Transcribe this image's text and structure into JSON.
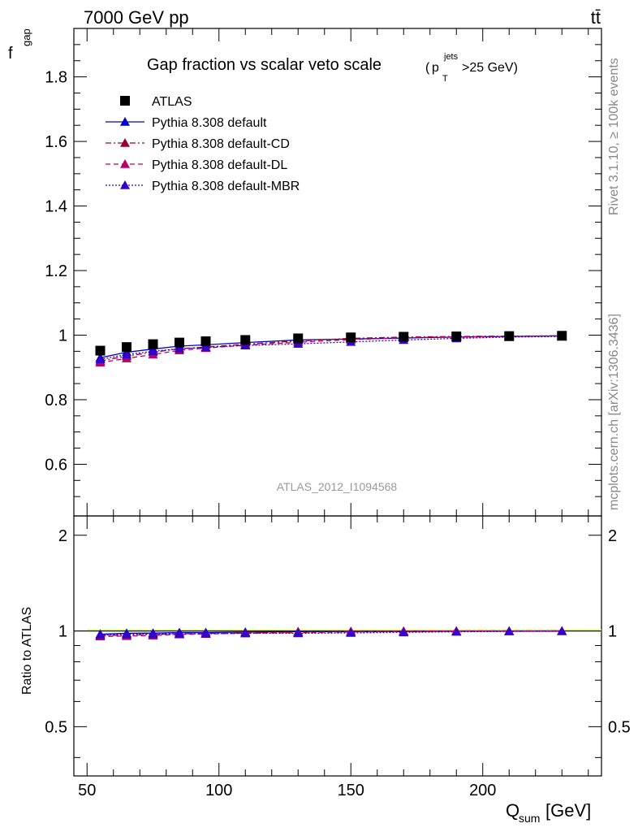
{
  "header": {
    "energy": "7000 GeV pp",
    "process": "tt̄"
  },
  "side_text": {
    "rivet": "Rivet 3.1.10, ≥ 100k events",
    "source": "mcplots.cern.ch [arXiv:1306.3436]"
  },
  "chart_data": {
    "type": "line",
    "title": "Gap fraction vs scalar veto scale",
    "title_cut": {
      "p": "p",
      "sup": "jets",
      "sub": "T",
      "rest": ">25 GeV)"
    },
    "analysis_id": "ATLAS_2012_I1094568",
    "xlabel": {
      "main": "Q",
      "sub": "sum",
      "unit": " [GeV]"
    },
    "ylabel": {
      "main": "f",
      "sub": "gap"
    },
    "ratio_ylabel": "Ratio to ATLAS",
    "xlim": [
      45,
      245
    ],
    "ylim": [
      0.44,
      1.95
    ],
    "ratio_ylim": [
      0.35,
      2.3
    ],
    "x_ticks": [
      "50",
      "100",
      "150",
      "200"
    ],
    "y_ticks": [
      "0.6",
      "0.8",
      "1",
      "1.2",
      "1.4",
      "1.6",
      "1.8"
    ],
    "ratio_y_ticks": [
      "0.5",
      "1",
      "2"
    ],
    "x": [
      55,
      65,
      75,
      85,
      95,
      110,
      130,
      150,
      170,
      190,
      210,
      230
    ],
    "data": {
      "name": "ATLAS",
      "values": [
        0.952,
        0.963,
        0.972,
        0.977,
        0.981,
        0.985,
        0.99,
        0.993,
        0.995,
        0.996,
        0.997,
        0.998
      ]
    },
    "series": [
      {
        "name": "Pythia 8.308 default",
        "color": "#0000cc",
        "dash": "",
        "values": [
          0.93,
          0.947,
          0.957,
          0.966,
          0.97,
          0.977,
          0.985,
          0.988,
          0.991,
          0.994,
          0.996,
          0.998
        ]
      },
      {
        "name": "Pythia 8.308 default-CD",
        "color": "#990033",
        "dash": "7,3,2,3",
        "values": [
          0.92,
          0.935,
          0.947,
          0.958,
          0.963,
          0.972,
          0.982,
          0.99,
          0.994,
          0.996,
          0.997,
          0.998
        ]
      },
      {
        "name": "Pythia 8.308 default-DL",
        "color": "#bb0066",
        "dash": "6,4",
        "values": [
          0.915,
          0.928,
          0.94,
          0.953,
          0.96,
          0.969,
          0.978,
          0.986,
          0.992,
          0.995,
          0.996,
          0.997
        ]
      },
      {
        "name": "Pythia 8.308 default-MBR",
        "color": "#3300cc",
        "dash": "2,2",
        "values": [
          0.925,
          0.94,
          0.95,
          0.958,
          0.962,
          0.968,
          0.973,
          0.979,
          0.985,
          0.99,
          0.994,
          0.996
        ]
      }
    ],
    "colors": {
      "data": "#000000",
      "band": "#ccff33",
      "band_edge": "#ffff00"
    },
    "legend_position": "top-left",
    "grid": false
  }
}
